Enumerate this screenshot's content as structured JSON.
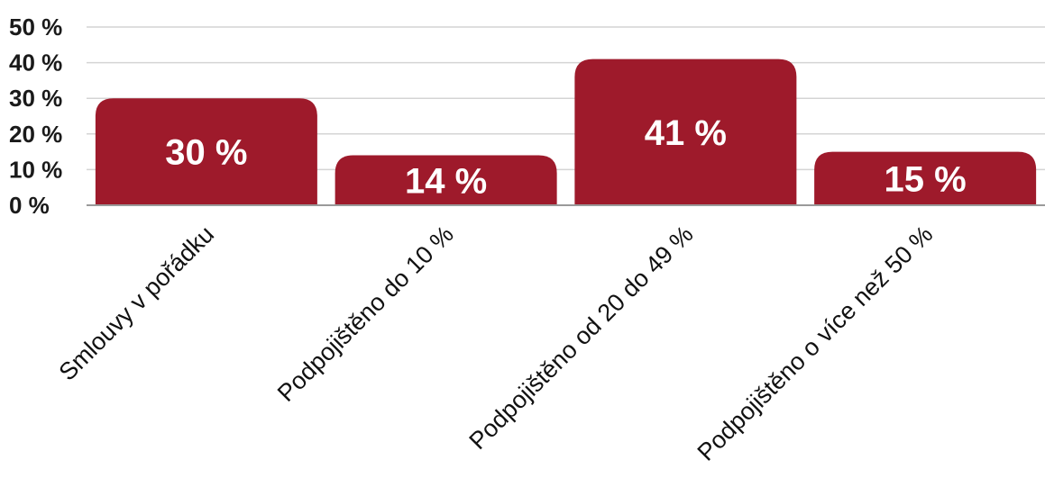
{
  "chart_data": {
    "type": "bar",
    "categories": [
      "Smlouvy v pořádku",
      "Podpojištěno do 10 %",
      "Podpojištěno od 20 do 49 %",
      "Podpojištěno o více než 50 %"
    ],
    "values": [
      30,
      14,
      41,
      15
    ],
    "data_labels": [
      "30 %",
      "14 %",
      "41 %",
      "15 %"
    ],
    "title": "",
    "xlabel": "",
    "ylabel": "",
    "ylim": [
      0,
      50
    ],
    "yticks": [
      0,
      10,
      20,
      30,
      40,
      50
    ],
    "ytick_labels": [
      "0 %",
      "10 %",
      "20 %",
      "30 %",
      "40 %",
      "50 %"
    ],
    "grid": true,
    "legend": "none",
    "bar_color": "#9e1a2b",
    "label_color": "#ffffff"
  }
}
